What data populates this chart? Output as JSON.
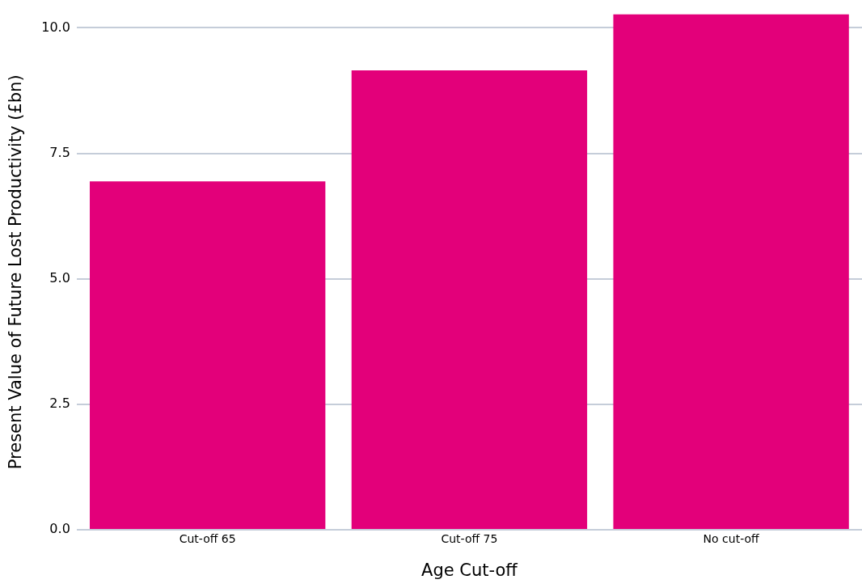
{
  "chart_data": {
    "type": "bar",
    "xlabel": "Age Cut-off",
    "ylabel": "Present Value of Future Lost Productivity (£bn)",
    "categories": [
      "Cut-off 65",
      "Cut-off 75",
      "No cut-off"
    ],
    "values": [
      6.94,
      9.15,
      10.27
    ],
    "color": "#e3007a",
    "ylim": [
      0,
      10.27
    ],
    "yticks": [
      {
        "value": 0,
        "label": "0.0"
      },
      {
        "value": 2.5,
        "label": "2.5"
      },
      {
        "value": 5,
        "label": "5.0"
      },
      {
        "value": 7.5,
        "label": "7.5"
      },
      {
        "value": 10,
        "label": "10.0"
      }
    ],
    "grid": "y",
    "legend": false
  }
}
